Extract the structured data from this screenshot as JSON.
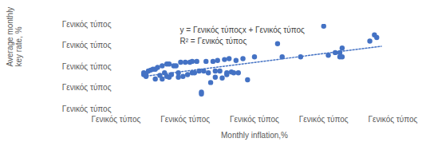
{
  "chart_data": {
    "type": "scatter",
    "x_label": "Monthly inflation,%",
    "y_label": "Average monthly key rate, %",
    "annotations": [
      "y = Γενικός τύποςx + Γενικός τύπος",
      "R² = Γενικός τύπος"
    ],
    "xlim": [
      0,
      1.2
    ],
    "ylim": [
      0,
      8
    ],
    "xticks": [
      {
        "value": 0,
        "label": "Γενικός τύπος"
      },
      {
        "value": 0.3,
        "label": "Γενικός τύπος"
      },
      {
        "value": 0.6,
        "label": "Γενικός τύπος"
      },
      {
        "value": 0.9,
        "label": "Γενικός τύπος"
      },
      {
        "value": 1.2,
        "label": "Γενικός τύπος"
      }
    ],
    "yticks": [
      {
        "value": 0,
        "label": "Γενικός τύπος"
      },
      {
        "value": 2,
        "label": "Γενικός τύπος"
      },
      {
        "value": 4,
        "label": "Γενικός τύπος"
      },
      {
        "value": 6,
        "label": "Γενικός τύπος"
      },
      {
        "value": 8,
        "label": "Γενικός τύπος"
      }
    ],
    "grid": false,
    "series": [
      {
        "type": "scatter",
        "marker": "circle",
        "color": "#4472c4",
        "x": [
          0.12,
          0.12,
          0.13,
          0.13,
          0.14,
          0.15,
          0.16,
          0.17,
          0.17,
          0.18,
          0.19,
          0.2,
          0.2,
          0.21,
          0.22,
          0.22,
          0.23,
          0.23,
          0.24,
          0.25,
          0.26,
          0.27,
          0.27,
          0.28,
          0.29,
          0.3,
          0.31,
          0.32,
          0.33,
          0.33,
          0.34,
          0.35,
          0.36,
          0.37,
          0.37,
          0.38,
          0.39,
          0.4,
          0.41,
          0.42,
          0.43,
          0.43,
          0.44,
          0.45,
          0.46,
          0.47,
          0.48,
          0.48,
          0.49,
          0.5,
          0.51,
          0.52,
          0.53,
          0.55,
          0.57,
          0.6,
          0.7,
          0.72,
          0.8,
          0.9,
          0.92,
          0.95,
          0.97,
          0.97,
          0.98,
          0.98,
          1.1,
          1.12,
          1.13
        ],
        "values": [
          3.25,
          3.42,
          3.08,
          3.33,
          3.58,
          3.67,
          3.75,
          2.83,
          3.75,
          3.92,
          3.17,
          2.83,
          4.08,
          3.42,
          3.08,
          4.25,
          3.0,
          4.25,
          3.25,
          4.08,
          4.08,
          3.0,
          3.42,
          4.42,
          3.08,
          4.42,
          3.25,
          4.42,
          3.42,
          4.5,
          3.42,
          4.5,
          3.58,
          1.58,
          1.42,
          3.58,
          4.5,
          3.42,
          2.5,
          4.5,
          3.58,
          3.0,
          4.58,
          3.58,
          2.92,
          4.67,
          3.25,
          3.42,
          4.75,
          3.5,
          3.42,
          4.58,
          3.42,
          4.75,
          2.75,
          4.92,
          6.17,
          4.92,
          4.92,
          7.83,
          5.08,
          5.33,
          4.92,
          5.33,
          4.92,
          5.75,
          6.42,
          7.0,
          6.75
        ]
      },
      {
        "type": "line",
        "line_style": "dotted",
        "color": "#4472c4",
        "x": [
          0.12,
          1.15
        ],
        "values": [
          3.08,
          5.92
        ]
      }
    ]
  }
}
